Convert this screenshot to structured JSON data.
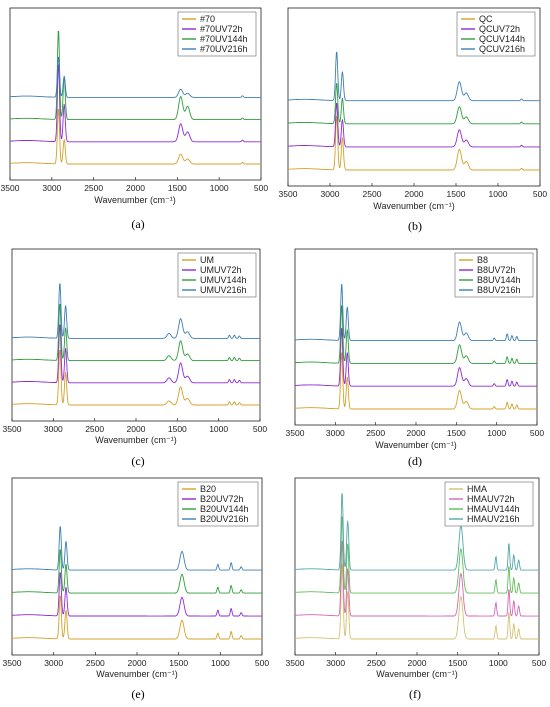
{
  "figure": {
    "panels": [
      {
        "id": "a",
        "label": "(a)",
        "xlabel": "Wavenumber (cm⁻¹)",
        "xticks": [
          "3500",
          "3000",
          "2500",
          "2000",
          "1500",
          "1000",
          "500"
        ],
        "legend": [
          "#70",
          "#70UV72h",
          "#70UV144h",
          "#70UV216h"
        ]
      },
      {
        "id": "b",
        "label": "(b)",
        "xlabel": "Wavenumber (cm⁻¹)",
        "xticks": [
          "3500",
          "3000",
          "2500",
          "2000",
          "1500",
          "1000",
          "500"
        ],
        "legend": [
          "QC",
          "QCUV72h",
          "QCUV144h",
          "QCUV216h"
        ]
      },
      {
        "id": "c",
        "label": "(c)",
        "xlabel": "Wavenumber (cm⁻¹)",
        "xticks": [
          "3500",
          "3000",
          "2500",
          "2000",
          "1500",
          "1000",
          "500"
        ],
        "legend": [
          "UM",
          "UMUV72h",
          "UMUV144h",
          "UMUV216h"
        ]
      },
      {
        "id": "d",
        "label": "(d)",
        "xlabel": "Wavenumber (cm⁻¹)",
        "xticks": [
          "3500",
          "3000",
          "2500",
          "2000",
          "1500",
          "1000",
          "500"
        ],
        "legend": [
          "B8",
          "B8UV72h",
          "B8UV144h",
          "B8UV216h"
        ]
      },
      {
        "id": "e",
        "label": "(e)",
        "xlabel": "Wavenumber (cm⁻¹)",
        "xticks": [
          "3500",
          "3000",
          "2500",
          "2000",
          "1500",
          "1000",
          "500"
        ],
        "legend": [
          "B20",
          "B20UV72h",
          "B20UV144h",
          "B20UV216h"
        ]
      },
      {
        "id": "f",
        "label": "(f)",
        "xlabel": "Wavenumber (cm⁻¹)",
        "xticks": [
          "3500",
          "3000",
          "2500",
          "2000",
          "1500",
          "1000",
          "500"
        ],
        "legend": [
          "HMA",
          "HMAUV72h",
          "HMAUV144h",
          "HMAUV216h"
        ]
      }
    ]
  },
  "chart_data": [
    {
      "type": "line",
      "panel": "a",
      "xlim": [
        3500,
        500
      ],
      "x_reversed": true,
      "y_axis_visible": false,
      "series_colors": [
        "#d4a12a",
        "#8e2bd6",
        "#2f9e3a",
        "#3e7fb5"
      ],
      "series_offsets": [
        0,
        1,
        2,
        3
      ],
      "peaks": [
        {
          "x": 2921,
          "h": [
            3.4,
            4.8,
            5.5,
            2.5
          ]
        },
        {
          "x": 2852,
          "h": [
            1.5,
            2.3,
            2.6,
            1.3
          ]
        },
        {
          "x": 1460,
          "h": [
            0.6,
            1.1,
            1.4,
            0.5
          ]
        },
        {
          "x": 1377,
          "h": [
            0.3,
            0.6,
            0.8,
            0.25
          ]
        },
        {
          "x": 720,
          "h": [
            0.1,
            0.1,
            0.1,
            0.1
          ]
        }
      ]
    },
    {
      "type": "line",
      "panel": "b",
      "xlim": [
        3500,
        500
      ],
      "x_reversed": true,
      "y_axis_visible": false,
      "series_colors": [
        "#d4a12a",
        "#8e2bd6",
        "#2f9e3a",
        "#3e7fb5"
      ],
      "series_offsets": [
        0,
        1,
        2,
        3
      ],
      "peaks": [
        {
          "x": 2921,
          "h": [
            3.2,
            2.6,
            2.4,
            2.9
          ]
        },
        {
          "x": 2852,
          "h": [
            1.9,
            1.6,
            1.5,
            1.7
          ]
        },
        {
          "x": 1460,
          "h": [
            1.2,
            1.0,
            1.0,
            1.1
          ]
        },
        {
          "x": 1377,
          "h": [
            0.5,
            0.4,
            0.4,
            0.45
          ]
        },
        {
          "x": 720,
          "h": [
            0.1,
            0.1,
            0.1,
            0.1
          ]
        }
      ]
    },
    {
      "type": "line",
      "panel": "c",
      "xlim": [
        3500,
        500
      ],
      "x_reversed": true,
      "y_axis_visible": false,
      "series_colors": [
        "#d4a12a",
        "#8e2bd6",
        "#2f9e3a",
        "#3e7fb5"
      ],
      "series_offsets": [
        0,
        1,
        2,
        3
      ],
      "peaks": [
        {
          "x": 2921,
          "h": [
            3.4,
            3.6,
            3.5,
            3.4
          ]
        },
        {
          "x": 2852,
          "h": [
            2.0,
            2.1,
            2.0,
            2.0
          ]
        },
        {
          "x": 1600,
          "h": [
            0.25,
            0.3,
            0.3,
            0.3
          ]
        },
        {
          "x": 1460,
          "h": [
            1.1,
            1.2,
            1.2,
            1.2
          ]
        },
        {
          "x": 1377,
          "h": [
            0.4,
            0.4,
            0.4,
            0.4
          ]
        },
        {
          "x": 870,
          "h": [
            0.2,
            0.2,
            0.2,
            0.2
          ]
        },
        {
          "x": 810,
          "h": [
            0.2,
            0.2,
            0.2,
            0.2
          ]
        },
        {
          "x": 750,
          "h": [
            0.15,
            0.15,
            0.15,
            0.15
          ]
        }
      ]
    },
    {
      "type": "line",
      "panel": "d",
      "xlim": [
        3500,
        500
      ],
      "x_reversed": true,
      "y_axis_visible": false,
      "series_colors": [
        "#d4a12a",
        "#8e2bd6",
        "#2f9e3a",
        "#3e7fb5"
      ],
      "series_offsets": [
        0,
        1,
        2,
        3
      ],
      "peaks": [
        {
          "x": 2921,
          "h": [
            3.4,
            3.5,
            3.5,
            3.4
          ]
        },
        {
          "x": 2852,
          "h": [
            1.9,
            2.0,
            2.0,
            2.0
          ]
        },
        {
          "x": 1460,
          "h": [
            1.1,
            1.1,
            1.1,
            1.1
          ]
        },
        {
          "x": 1377,
          "h": [
            0.45,
            0.45,
            0.45,
            0.45
          ]
        },
        {
          "x": 1030,
          "h": [
            0.15,
            0.15,
            0.15,
            0.15
          ]
        },
        {
          "x": 870,
          "h": [
            0.4,
            0.4,
            0.4,
            0.4
          ]
        },
        {
          "x": 810,
          "h": [
            0.3,
            0.3,
            0.3,
            0.3
          ]
        },
        {
          "x": 750,
          "h": [
            0.25,
            0.25,
            0.25,
            0.25
          ]
        }
      ]
    },
    {
      "type": "line",
      "panel": "e",
      "xlim": [
        3500,
        500
      ],
      "x_reversed": true,
      "y_axis_visible": false,
      "series_colors": [
        "#d4a12a",
        "#8e2bd6",
        "#2f9e3a",
        "#3e7fb5"
      ],
      "series_offsets": [
        0,
        1,
        2,
        3
      ],
      "peaks": [
        {
          "x": 2921,
          "h": [
            2.6,
            2.6,
            2.6,
            2.6
          ]
        },
        {
          "x": 2852,
          "h": [
            1.7,
            1.7,
            1.7,
            1.7
          ]
        },
        {
          "x": 1460,
          "h": [
            1.1,
            1.1,
            1.1,
            1.1
          ]
        },
        {
          "x": 1030,
          "h": [
            0.35,
            0.35,
            0.35,
            0.35
          ]
        },
        {
          "x": 870,
          "h": [
            0.45,
            0.45,
            0.45,
            0.45
          ]
        },
        {
          "x": 750,
          "h": [
            0.2,
            0.2,
            0.2,
            0.2
          ]
        }
      ]
    },
    {
      "type": "line",
      "panel": "f",
      "xlim": [
        3500,
        500
      ],
      "x_reversed": true,
      "y_axis_visible": false,
      "series_colors": [
        "#d4c270",
        "#d668b5",
        "#5fbf5a",
        "#55a8a8"
      ],
      "series_offsets": [
        0,
        1,
        2,
        3
      ],
      "peaks": [
        {
          "x": 2921,
          "h": [
            4.5,
            4.5,
            4.6,
            4.6
          ]
        },
        {
          "x": 2852,
          "h": [
            2.8,
            2.8,
            2.9,
            2.9
          ]
        },
        {
          "x": 1460,
          "h": [
            2.5,
            2.5,
            2.6,
            2.6
          ]
        },
        {
          "x": 1030,
          "h": [
            0.8,
            0.8,
            0.8,
            0.8
          ]
        },
        {
          "x": 870,
          "h": [
            1.6,
            1.6,
            1.6,
            1.6
          ]
        },
        {
          "x": 810,
          "h": [
            0.9,
            0.9,
            0.9,
            0.9
          ]
        },
        {
          "x": 750,
          "h": [
            0.6,
            0.6,
            0.6,
            0.6
          ]
        }
      ]
    }
  ]
}
